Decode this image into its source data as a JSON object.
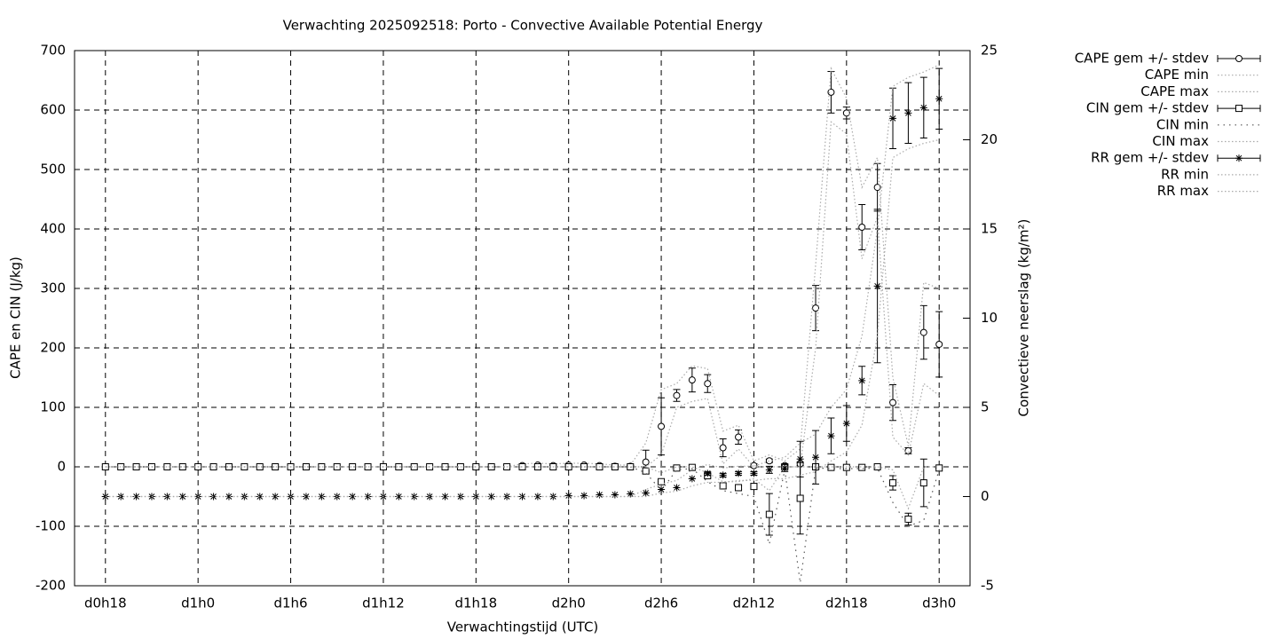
{
  "chart_data": {
    "type": "errorbar-line",
    "title": "Verwachting 2025092518: Porto - Convective Available Potential Energy",
    "xlabel": "Verwachtingstijd (UTC)",
    "ylabel": "CAPE en CIN (J/kg)",
    "y2label": "Convectieve neerslag (kg/m²)",
    "x": [
      18,
      19,
      20,
      21,
      22,
      23,
      24,
      25,
      26,
      27,
      28,
      29,
      30,
      31,
      32,
      33,
      34,
      35,
      36,
      37,
      38,
      39,
      40,
      41,
      42,
      43,
      44,
      45,
      46,
      47,
      48,
      49,
      50,
      51,
      52,
      53,
      54,
      55,
      56,
      57,
      58,
      59,
      60,
      61,
      62,
      63,
      64,
      65,
      66,
      67,
      68,
      69,
      70,
      71,
      72
    ],
    "xlim": [
      16,
      74
    ],
    "xticks": [
      {
        "value": 18,
        "label": "d0h18"
      },
      {
        "value": 24,
        "label": "d1h0"
      },
      {
        "value": 30,
        "label": "d1h6"
      },
      {
        "value": 36,
        "label": "d1h12"
      },
      {
        "value": 42,
        "label": "d1h18"
      },
      {
        "value": 48,
        "label": "d2h0"
      },
      {
        "value": 54,
        "label": "d2h6"
      },
      {
        "value": 60,
        "label": "d2h12"
      },
      {
        "value": 66,
        "label": "d2h18"
      },
      {
        "value": 72,
        "label": "d3h0"
      }
    ],
    "ylim": [
      -200,
      700
    ],
    "yticks": [
      -200,
      -100,
      0,
      100,
      200,
      300,
      400,
      500,
      600,
      700
    ],
    "y2lim": [
      -5,
      25
    ],
    "y2ticks": [
      -5,
      0,
      5,
      10,
      15,
      20,
      25
    ],
    "grid": true,
    "legend": "right",
    "series": [
      {
        "name": "CAPE gem +/- stdev",
        "color": "#000000",
        "style": "errorbars",
        "marker": "circle",
        "values": [
          0,
          0,
          0,
          0,
          0,
          0,
          0,
          0,
          0,
          0,
          0,
          0,
          0,
          0,
          0,
          0,
          0,
          0,
          0,
          0,
          0,
          0,
          0,
          0,
          0,
          0,
          0,
          2,
          3,
          2,
          3,
          3,
          2,
          1,
          1,
          8,
          68,
          120,
          146,
          140,
          32,
          50,
          2,
          10,
          2,
          5,
          267,
          630,
          595,
          403,
          470,
          108,
          27,
          226,
          206
        ],
        "errors": [
          0,
          0,
          0,
          0,
          0,
          0,
          0,
          0,
          0,
          0,
          0,
          0,
          0,
          0,
          0,
          0,
          0,
          0,
          0,
          0,
          0,
          0,
          0,
          0,
          0,
          0,
          0,
          1,
          2,
          1,
          2,
          2,
          1,
          1,
          1,
          20,
          48,
          10,
          20,
          15,
          15,
          12,
          3,
          3,
          2,
          3,
          38,
          35,
          10,
          38,
          40,
          30,
          5,
          45,
          55
        ]
      },
      {
        "name": "CAPE min",
        "color": "#aaaaaa",
        "style": "dotted",
        "values": [
          0,
          0,
          0,
          0,
          0,
          0,
          0,
          0,
          0,
          0,
          0,
          0,
          0,
          0,
          0,
          0,
          0,
          0,
          0,
          0,
          0,
          0,
          0,
          0,
          0,
          0,
          0,
          0,
          0,
          0,
          0,
          0,
          0,
          0,
          0,
          0,
          20,
          100,
          110,
          115,
          5,
          30,
          0,
          0,
          0,
          0,
          200,
          580,
          560,
          350,
          420,
          50,
          20,
          140,
          120
        ]
      },
      {
        "name": "CAPE max",
        "color": "#aaaaaa",
        "style": "dotted",
        "values": [
          0,
          0,
          0,
          0,
          0,
          0,
          0,
          0,
          0,
          0,
          0,
          0,
          0,
          0,
          0,
          0,
          0,
          0,
          0,
          0,
          0,
          0,
          0,
          0,
          0,
          0,
          0,
          5,
          6,
          5,
          6,
          6,
          5,
          3,
          3,
          40,
          130,
          140,
          170,
          165,
          60,
          70,
          10,
          20,
          10,
          30,
          340,
          670,
          620,
          470,
          520,
          150,
          35,
          310,
          300
        ]
      },
      {
        "name": "CIN gem +/- stdev",
        "color": "#000000",
        "style": "errorbars",
        "marker": "square",
        "values": [
          0,
          0,
          0,
          0,
          0,
          0,
          0,
          0,
          0,
          0,
          0,
          0,
          0,
          0,
          0,
          0,
          0,
          0,
          0,
          0,
          0,
          0,
          0,
          0,
          0,
          0,
          0,
          0,
          0,
          0,
          0,
          0,
          0,
          0,
          0,
          -7,
          -25,
          -2,
          -1,
          -15,
          -32,
          -35,
          -33,
          -80,
          0,
          -53,
          0,
          -1,
          -1,
          -1,
          0,
          -27,
          -88,
          -27,
          -2
        ],
        "errors": [
          0,
          0,
          0,
          0,
          0,
          0,
          0,
          0,
          0,
          0,
          0,
          0,
          0,
          0,
          0,
          0,
          0,
          0,
          0,
          0,
          0,
          0,
          0,
          0,
          0,
          0,
          0,
          0,
          0,
          0,
          0,
          0,
          0,
          0,
          0,
          0,
          0,
          0,
          0,
          3,
          5,
          3,
          5,
          35,
          2,
          60,
          0,
          0,
          0,
          0,
          0,
          12,
          10,
          40,
          0
        ]
      },
      {
        "name": "CIN min",
        "color": "#555555",
        "style": "dotted",
        "values": [
          0,
          0,
          0,
          0,
          0,
          0,
          0,
          0,
          0,
          0,
          0,
          0,
          0,
          0,
          0,
          0,
          0,
          0,
          0,
          0,
          0,
          0,
          0,
          0,
          0,
          0,
          0,
          0,
          0,
          0,
          0,
          0,
          0,
          0,
          0,
          -10,
          -40,
          -5,
          -3,
          -25,
          -40,
          -45,
          -50,
          -130,
          -5,
          -195,
          -2,
          -3,
          -3,
          -3,
          -2,
          -60,
          -100,
          -90,
          -5
        ]
      },
      {
        "name": "CIN max",
        "color": "#aaaaaa",
        "style": "dotted",
        "values": [
          0,
          0,
          0,
          0,
          0,
          0,
          0,
          0,
          0,
          0,
          0,
          0,
          0,
          0,
          0,
          0,
          0,
          0,
          0,
          0,
          0,
          0,
          0,
          0,
          0,
          0,
          0,
          0,
          0,
          0,
          0,
          0,
          0,
          0,
          0,
          0,
          -10,
          0,
          0,
          -10,
          -25,
          -25,
          -20,
          -40,
          0,
          0,
          0,
          0,
          0,
          0,
          0,
          -5,
          -70,
          0,
          0
        ]
      },
      {
        "name": "RR gem +/- stdev",
        "color": "#000000",
        "style": "errorbars",
        "marker": "star",
        "axis": "y2",
        "values": [
          0,
          0,
          0,
          0,
          0,
          0,
          0,
          0,
          0,
          0,
          0,
          0,
          0,
          0,
          0,
          0,
          0,
          0,
          0,
          0,
          0,
          0,
          0,
          0,
          0,
          0,
          0,
          0,
          0,
          0,
          0.05,
          0.05,
          0.1,
          0.1,
          0.15,
          0.2,
          0.4,
          0.5,
          1.0,
          1.3,
          1.2,
          1.3,
          1.3,
          1.5,
          1.6,
          2.1,
          2.2,
          3.4,
          4.1,
          6.5,
          11.8,
          21.2,
          21.5,
          21.8,
          22.3
        ],
        "errors": [
          0,
          0,
          0,
          0,
          0,
          0,
          0,
          0,
          0,
          0,
          0,
          0,
          0,
          0,
          0,
          0,
          0,
          0,
          0,
          0,
          0,
          0,
          0,
          0,
          0,
          0,
          0,
          0,
          0,
          0,
          0,
          0,
          0,
          0,
          0,
          0,
          0,
          0,
          0,
          0.1,
          0.1,
          0.1,
          0.1,
          0.2,
          0.2,
          1.0,
          1.5,
          1.0,
          1.0,
          0.8,
          4.3,
          1.7,
          1.7,
          1.7,
          1.7
        ]
      },
      {
        "name": "RR min",
        "color": "#aaaaaa",
        "style": "dotted",
        "axis": "y2",
        "values": [
          0,
          0,
          0,
          0,
          0,
          0,
          0,
          0,
          0,
          0,
          0,
          0,
          0,
          0,
          0,
          0,
          0,
          0,
          0,
          0,
          0,
          0,
          0,
          0,
          0,
          0,
          0,
          0,
          0,
          0,
          0,
          0,
          0,
          0,
          0,
          0,
          0.2,
          0.3,
          0.6,
          0.8,
          0.8,
          0.9,
          0.9,
          1,
          1,
          1.2,
          1.4,
          2,
          2.5,
          4,
          9,
          19,
          19.5,
          19.8,
          20
        ]
      },
      {
        "name": "RR max",
        "color": "#aaaaaa",
        "style": "dotted",
        "axis": "y2",
        "values": [
          0,
          0,
          0,
          0,
          0,
          0,
          0,
          0,
          0,
          0,
          0,
          0,
          0,
          0,
          0,
          0,
          0,
          0,
          0,
          0,
          0,
          0,
          0,
          0,
          0,
          0,
          0,
          0,
          0,
          0,
          0,
          0,
          0,
          0,
          0,
          0.4,
          0.7,
          0.9,
          1.5,
          1.8,
          1.6,
          1.7,
          1.7,
          2,
          2.2,
          3,
          3.5,
          5,
          6,
          9,
          15,
          23,
          23.5,
          23.8,
          24.2
        ]
      }
    ]
  }
}
